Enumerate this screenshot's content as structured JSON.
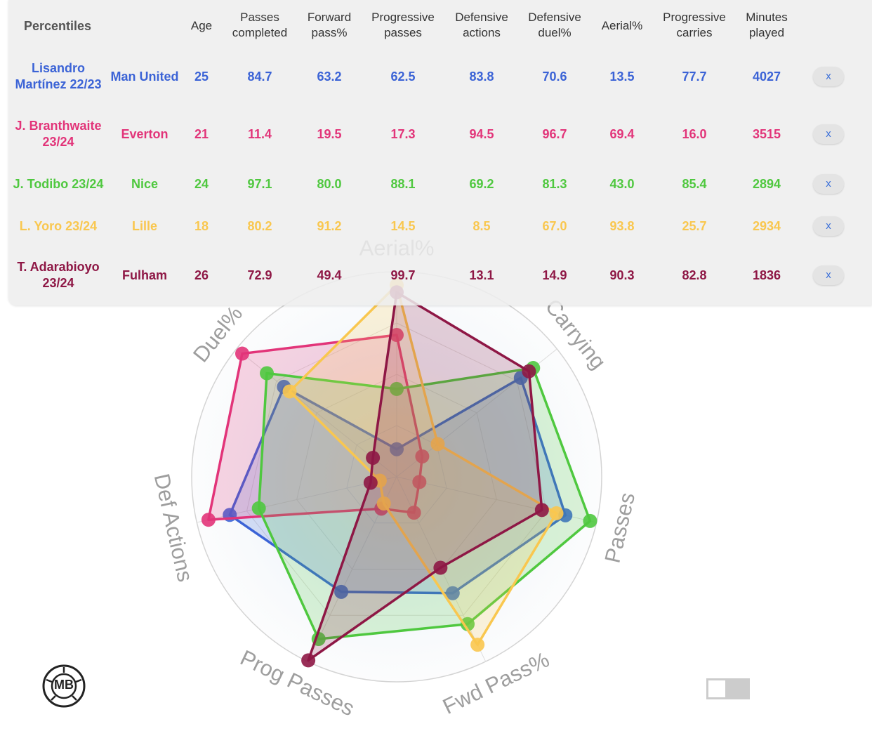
{
  "table": {
    "title": "Percentiles",
    "columns": [
      "Age",
      "Passes completed",
      "Forward pass%",
      "Progressive passes",
      "Defensive actions",
      "Defensive duel%",
      "Aerial%",
      "Progressive carries",
      "Minutes played"
    ],
    "remove_label": "x",
    "rows": [
      {
        "player": "Lisandro Martínez 22/23",
        "team": "Man United",
        "color": "#3b63d6",
        "values": [
          "25",
          "84.7",
          "63.2",
          "62.5",
          "83.8",
          "70.6",
          "13.5",
          "77.7",
          "4027"
        ]
      },
      {
        "player": "J. Branthwaite 23/24",
        "team": "Everton",
        "color": "#e23479",
        "values": [
          "21",
          "11.4",
          "19.5",
          "17.3",
          "94.5",
          "96.7",
          "69.4",
          "16.0",
          "3515"
        ]
      },
      {
        "player": "J. Todibo 23/24",
        "team": "Nice",
        "color": "#4fc83f",
        "values": [
          "24",
          "97.1",
          "80.0",
          "88.1",
          "69.2",
          "81.3",
          "43.0",
          "85.4",
          "2894"
        ]
      },
      {
        "player": "L. Yoro 23/24",
        "team": "Lille",
        "color": "#f9c74f",
        "values": [
          "18",
          "80.2",
          "91.2",
          "14.5",
          "8.5",
          "67.0",
          "93.8",
          "25.7",
          "2934"
        ]
      },
      {
        "player": "T. Adarabioyo 23/24",
        "team": "Fulham",
        "color": "#8e1745",
        "values": [
          "26",
          "72.9",
          "49.4",
          "99.7",
          "13.1",
          "14.9",
          "90.3",
          "82.8",
          "1836"
        ]
      }
    ]
  },
  "chart_data": {
    "type": "radar",
    "axes": [
      "Aerial%",
      "Carrying",
      "Passes",
      "Fwd Pass%",
      "Prog Passes",
      "Def Actions",
      "Duel%"
    ],
    "range": [
      0,
      100
    ],
    "series": [
      {
        "name": "Lisandro Martínez 22/23",
        "color": "#3b63d6",
        "values": [
          13.5,
          77.7,
          84.7,
          63.2,
          62.5,
          83.8,
          70.6
        ]
      },
      {
        "name": "J. Branthwaite 23/24",
        "color": "#e23479",
        "values": [
          69.4,
          16.0,
          11.4,
          19.5,
          17.3,
          94.5,
          96.7
        ]
      },
      {
        "name": "J. Todibo 23/24",
        "color": "#4fc83f",
        "values": [
          43.0,
          85.4,
          97.1,
          80.0,
          88.1,
          69.2,
          81.3
        ]
      },
      {
        "name": "L. Yoro 23/24",
        "color": "#f9c74f",
        "values": [
          93.8,
          25.7,
          80.2,
          91.2,
          14.5,
          8.5,
          67.0
        ]
      },
      {
        "name": "T. Adarabioyo 23/24",
        "color": "#8e1745",
        "values": [
          90.3,
          82.8,
          72.9,
          49.4,
          99.7,
          13.1,
          14.9
        ]
      }
    ]
  },
  "branding": {
    "logo_text": "MB",
    "toggle_state": "off"
  }
}
